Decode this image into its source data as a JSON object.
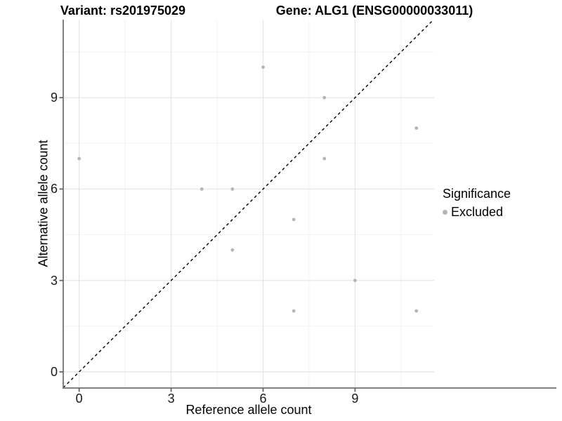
{
  "colors": {
    "background": "#ffffff",
    "grid_major": "#e4e4e4",
    "grid_minor": "#f2f2f2",
    "axis_line": "#808080",
    "tick_mark": "#666666",
    "tick_label": "#1a1a1a",
    "point": "#b5b5b5",
    "reference_line": "#000000"
  },
  "chart_data": {
    "type": "scatter",
    "titles": {
      "variant": "Variant: rs201975029",
      "gene": "Gene: ALG1 (ENSG00000033011)"
    },
    "xlabel": "Reference allele count",
    "ylabel": "Alternative allele count",
    "xlim": [
      -0.52,
      11.58
    ],
    "ylim": [
      -0.53,
      11.56
    ],
    "x_ticks": [
      0,
      3,
      6,
      9
    ],
    "y_ticks": [
      0,
      3,
      6,
      9
    ],
    "x_minor_ticks": [
      1.5,
      4.5,
      7.5,
      10.5
    ],
    "y_minor_ticks": [
      1.5,
      4.5,
      7.5,
      10.5
    ],
    "grid": "major+minor",
    "legend_position": "right",
    "legend": {
      "title": "Significance",
      "entries": [
        {
          "label": "Excluded",
          "color": "#b5b5b5"
        }
      ]
    },
    "series": [
      {
        "name": "Excluded",
        "marker": "circle",
        "color": "#b5b5b5",
        "points": [
          [
            0,
            7
          ],
          [
            4,
            6
          ],
          [
            5,
            4
          ],
          [
            5,
            6
          ],
          [
            6,
            10
          ],
          [
            7,
            2
          ],
          [
            7,
            5
          ],
          [
            8,
            7
          ],
          [
            8,
            9
          ],
          [
            9,
            3
          ],
          [
            11,
            2
          ],
          [
            11,
            8
          ]
        ]
      }
    ],
    "reference_line": {
      "slope": 1,
      "intercept": 0,
      "style": "dashed"
    }
  }
}
